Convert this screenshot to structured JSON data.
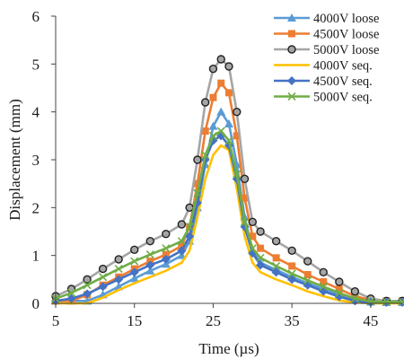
{
  "chart_data": {
    "type": "line",
    "title": "",
    "xlabel": "Time (µs)",
    "ylabel": "Displacement (mm)",
    "xlim": [
      5,
      49
    ],
    "ylim": [
      0,
      6
    ],
    "x_ticks": [
      5,
      15,
      25,
      35,
      45
    ],
    "y_ticks": [
      0,
      1,
      2,
      3,
      4,
      5,
      6
    ],
    "grid": false,
    "legend_position": "top-right",
    "x": [
      5,
      7,
      9,
      11,
      13,
      15,
      17,
      19,
      21,
      22,
      23,
      24,
      25,
      26,
      27,
      28,
      29,
      30,
      31,
      33,
      35,
      37,
      39,
      41,
      43,
      45,
      47,
      49
    ],
    "series": [
      {
        "name": "4000V loose",
        "color": "#5b9bd5",
        "marker": "triangle",
        "values": [
          0.05,
          0.05,
          0.05,
          0.18,
          0.35,
          0.52,
          0.68,
          0.82,
          1.0,
          1.3,
          2.0,
          2.9,
          3.7,
          4.0,
          3.75,
          2.9,
          1.8,
          1.1,
          0.85,
          0.7,
          0.55,
          0.42,
          0.3,
          0.18,
          0.08,
          0.03,
          0.02,
          0.02
        ]
      },
      {
        "name": "4500V loose",
        "color": "#ed7d31",
        "marker": "square",
        "values": [
          0.05,
          0.05,
          0.18,
          0.38,
          0.55,
          0.72,
          0.88,
          1.02,
          1.2,
          1.6,
          2.5,
          3.6,
          4.3,
          4.6,
          4.4,
          3.5,
          2.2,
          1.4,
          1.15,
          0.95,
          0.78,
          0.6,
          0.45,
          0.3,
          0.15,
          0.07,
          0.05,
          0.05
        ]
      },
      {
        "name": "5000V loose",
        "color": "#a5a5a5",
        "marker": "circle",
        "values": [
          0.15,
          0.3,
          0.5,
          0.72,
          0.92,
          1.12,
          1.3,
          1.45,
          1.65,
          2.0,
          3.0,
          4.2,
          4.9,
          5.1,
          4.95,
          4.0,
          2.6,
          1.7,
          1.5,
          1.3,
          1.1,
          0.88,
          0.65,
          0.45,
          0.25,
          0.1,
          0.05,
          0.05
        ]
      },
      {
        "name": "4000V seq.",
        "color": "#ffc000",
        "marker": "none",
        "values": [
          0.0,
          0.0,
          0.0,
          0.12,
          0.28,
          0.42,
          0.55,
          0.68,
          0.85,
          1.1,
          1.8,
          2.6,
          3.1,
          3.3,
          3.2,
          2.4,
          1.4,
          0.85,
          0.65,
          0.5,
          0.38,
          0.25,
          0.15,
          0.06,
          0.02,
          0.0,
          0.0,
          0.0
        ]
      },
      {
        "name": "4500V seq.",
        "color": "#4472c4",
        "marker": "diamond",
        "values": [
          0.05,
          0.1,
          0.2,
          0.35,
          0.5,
          0.65,
          0.8,
          0.92,
          1.1,
          1.4,
          2.1,
          3.0,
          3.4,
          3.5,
          3.3,
          2.6,
          1.6,
          1.05,
          0.8,
          0.65,
          0.5,
          0.38,
          0.25,
          0.14,
          0.05,
          0.02,
          0.02,
          0.02
        ]
      },
      {
        "name": "5000V seq.",
        "color": "#70ad47",
        "marker": "x",
        "values": [
          0.1,
          0.22,
          0.38,
          0.55,
          0.72,
          0.88,
          1.02,
          1.15,
          1.3,
          1.6,
          2.3,
          3.1,
          3.5,
          3.6,
          3.4,
          2.7,
          1.7,
          1.15,
          0.95,
          0.78,
          0.62,
          0.48,
          0.35,
          0.22,
          0.1,
          0.04,
          0.03,
          0.03
        ]
      }
    ]
  }
}
